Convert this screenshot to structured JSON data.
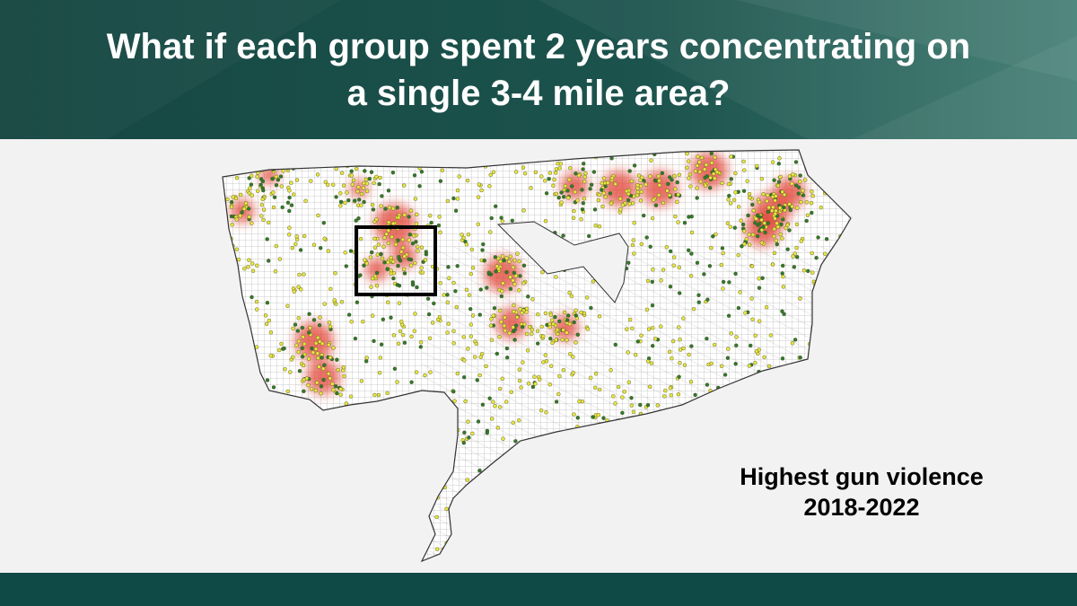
{
  "slide": {
    "title_line1": "What if each group spent 2 years concentrating on",
    "title_line2": "a single 3-4 mile area?",
    "caption_line1": "Highest gun violence",
    "caption_line2": "2018-2022"
  },
  "colors": {
    "header_bg": "#1b4f4a",
    "footer_bg": "#0f4a47",
    "slide_bg": "#f2f2f2",
    "incident_dot": "#e8e640",
    "incident_dot_alt": "#2f7a2f",
    "hotspot": "#e04030",
    "focus_box": "#000000"
  }
}
